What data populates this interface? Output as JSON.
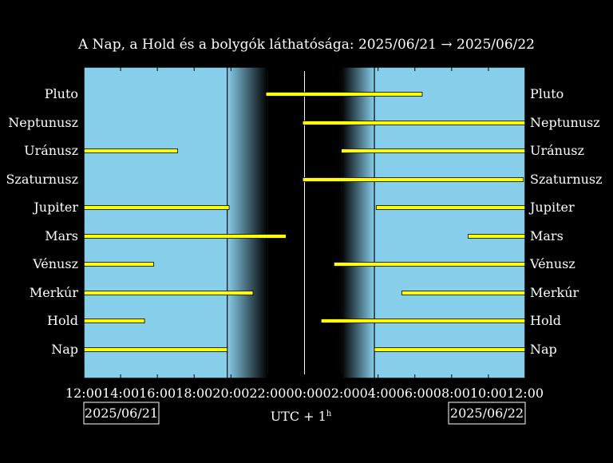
{
  "chart_data": {
    "type": "bar",
    "title": "A Nap, a Hold és a bolygók láthatósága: 2025/06/21 → 2025/06/22",
    "xlabel": "UTC + 1",
    "xlabel_sup": "h",
    "start_date": "2025/06/21",
    "end_date": "2025/06/22",
    "x_ticks": [
      "12:00",
      "14:00",
      "16:00",
      "18:00",
      "20:00",
      "22:00",
      "00:00",
      "02:00",
      "04:00",
      "06:00",
      "08:00",
      "10:00",
      "12:00"
    ],
    "xlim_hours": [
      12,
      36
    ],
    "colors": {
      "day": "#87ceeb",
      "night": "#000000",
      "bar": "#ffff00",
      "bar_edge": "#000000",
      "line": "#ffffff"
    },
    "sunset": 19.8,
    "dusk_end": 22.0,
    "midnight": 24.0,
    "dawn_start": 26.0,
    "sunrise": 27.8,
    "categories": [
      "Pluto",
      "Neptunusz",
      "Uránusz",
      "Szaturnusz",
      "Jupiter",
      "Mars",
      "Vénusz",
      "Merkúr",
      "Hold",
      "Nap"
    ],
    "series": [
      {
        "name": "Pluto",
        "intervals": [
          [
            21.9,
            30.4
          ]
        ]
      },
      {
        "name": "Neptunusz",
        "intervals": [
          [
            23.9,
            36.0
          ]
        ]
      },
      {
        "name": "Uránusz",
        "intervals": [
          [
            12.0,
            17.1
          ],
          [
            26.0,
            36.0
          ]
        ]
      },
      {
        "name": "Szaturnusz",
        "intervals": [
          [
            23.9,
            35.9
          ]
        ]
      },
      {
        "name": "Jupiter",
        "intervals": [
          [
            12.0,
            19.9
          ],
          [
            27.9,
            36.0
          ]
        ]
      },
      {
        "name": "Mars",
        "intervals": [
          [
            12.0,
            23.0
          ],
          [
            32.9,
            36.0
          ]
        ]
      },
      {
        "name": "Vénusz",
        "intervals": [
          [
            12.0,
            15.8
          ],
          [
            25.6,
            36.0
          ]
        ]
      },
      {
        "name": "Merkúr",
        "intervals": [
          [
            12.0,
            21.2
          ],
          [
            29.3,
            36.0
          ]
        ]
      },
      {
        "name": "Hold",
        "intervals": [
          [
            12.0,
            15.3
          ],
          [
            24.9,
            36.0
          ]
        ]
      },
      {
        "name": "Nap",
        "intervals": [
          [
            12.0,
            19.8
          ],
          [
            27.8,
            36.0
          ]
        ]
      }
    ]
  }
}
